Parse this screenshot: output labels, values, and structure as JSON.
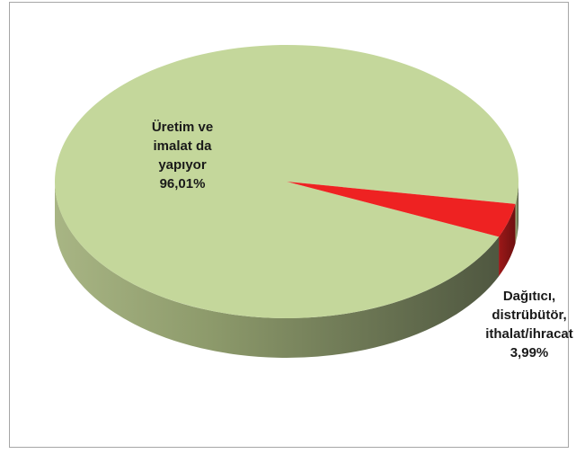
{
  "chart_data": {
    "type": "pie",
    "style": "3d",
    "title": "",
    "slices": [
      {
        "label_lines": [
          "Üretim ve",
          "imalat da",
          "yapıyor"
        ],
        "value": 96.01,
        "value_label": "96,01%",
        "color": "#c4d79b",
        "side_color": "#7d8a63"
      },
      {
        "label_lines": [
          "Dağıtıcı,",
          "distrübütör,",
          "ithalat/ihracat"
        ],
        "value": 3.99,
        "value_label": "3,99%",
        "color": "#ee2222",
        "side_color": "#8e1414"
      }
    ],
    "legend": "none",
    "grid": false
  }
}
